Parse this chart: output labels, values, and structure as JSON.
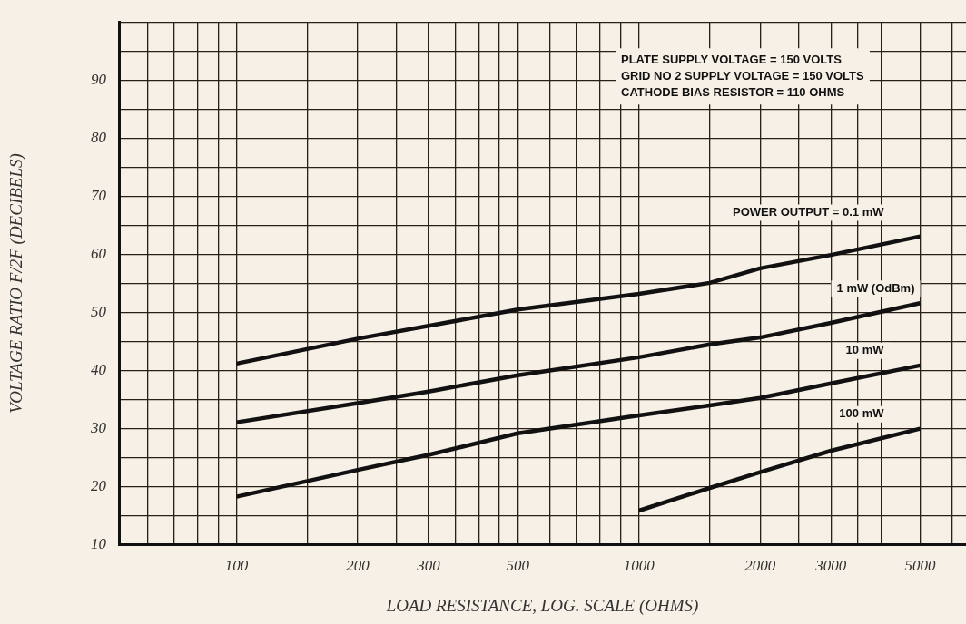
{
  "chart_data": {
    "type": "line",
    "xlabel": "LOAD RESISTANCE, LOG. SCALE (OHMS)",
    "ylabel": "VOLTAGE RATIO F/2F (DECIBELS)",
    "log": "x",
    "xlim": [
      51,
      6500
    ],
    "xticks": [
      {
        "value": 60,
        "label": null
      },
      {
        "value": 70,
        "label": null
      },
      {
        "value": 80,
        "label": null
      },
      {
        "value": 90,
        "label": null
      },
      100,
      {
        "value": 150,
        "label": null
      },
      200,
      {
        "value": 250,
        "label": null
      },
      300,
      {
        "value": 350,
        "label": null
      },
      {
        "value": 400,
        "label": null
      },
      {
        "value": 450,
        "label": null
      },
      500,
      {
        "value": 600,
        "label": null
      },
      {
        "value": 700,
        "label": null
      },
      {
        "value": 800,
        "label": null
      },
      {
        "value": 900,
        "label": null
      },
      1000,
      {
        "value": 1500,
        "label": null
      },
      2000,
      {
        "value": 2500,
        "label": null
      },
      3000,
      {
        "value": 3500,
        "label": null
      },
      {
        "value": 4000,
        "label": null
      },
      5000,
      {
        "value": 6000,
        "label": null
      }
    ],
    "ylim": [
      10,
      100
    ],
    "yticks": [
      10,
      {
        "value": 15,
        "label": null
      },
      20,
      {
        "value": 25,
        "label": null
      },
      30,
      {
        "value": 35,
        "label": null
      },
      40,
      {
        "value": 45,
        "label": null
      },
      50,
      {
        "value": 55,
        "label": null
      },
      60,
      {
        "value": 65,
        "label": null
      },
      70,
      {
        "value": 75,
        "label": null
      },
      80,
      {
        "value": 85,
        "label": null
      },
      90,
      {
        "value": 95,
        "label": null
      },
      {
        "value": 100,
        "label": null
      }
    ],
    "grid": true,
    "legend": false,
    "marker": "none",
    "line_style": "solid",
    "series": [
      {
        "name": "POWER OUTPUT = 0.1 mW",
        "color": "#111111",
        "x": [
          100,
          200,
          300,
          500,
          1000,
          1500,
          2000,
          3000,
          5000
        ],
        "values": [
          41.2,
          45.5,
          47.7,
          50.5,
          53.2,
          55.1,
          57.6,
          59.9,
          63.1
        ]
      },
      {
        "name": "1 mW (OdBm)",
        "color": "#111111",
        "x": [
          100,
          200,
          300,
          500,
          1000,
          1500,
          2000,
          3000,
          5000
        ],
        "values": [
          31.1,
          34.4,
          36.4,
          39.2,
          42.3,
          44.5,
          45.7,
          48.2,
          51.6
        ]
      },
      {
        "name": "10 mW",
        "color": "#111111",
        "x": [
          100,
          200,
          300,
          500,
          1000,
          1500,
          2000,
          3000,
          5000
        ],
        "values": [
          18.3,
          22.9,
          25.5,
          29.2,
          32.3,
          34.0,
          35.3,
          37.8,
          40.9
        ]
      },
      {
        "name": "100 mW",
        "color": "#111111",
        "x": [
          1000,
          1500,
          2000,
          3000,
          5000
        ],
        "values": [
          15.9,
          19.8,
          22.5,
          26.2,
          30.0
        ]
      }
    ],
    "annotations": [
      "PLATE SUPPLY VOLTAGE = 150 VOLTS",
      "GRID NO 2 SUPPLY VOLTAGE = 150 VOLTS",
      "CATHODE BIAS RESISTOR = 110 OHMS"
    ]
  }
}
